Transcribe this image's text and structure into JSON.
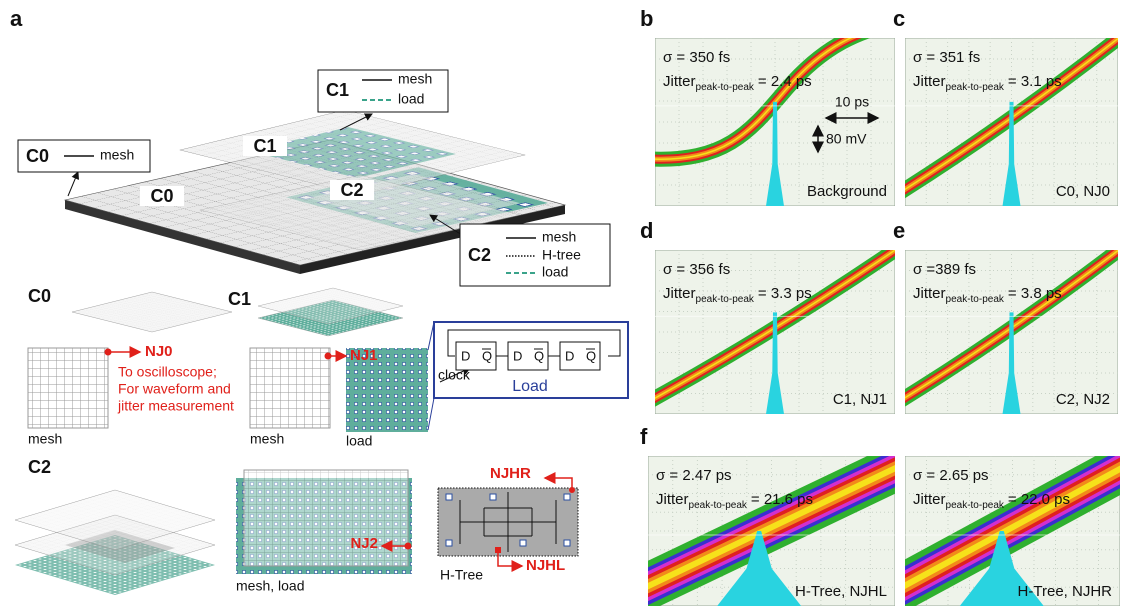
{
  "panel_a": {
    "label": "a",
    "chip": {
      "c1_legend": {
        "title": "C1",
        "items": [
          "mesh",
          "load"
        ]
      },
      "c0_legend": {
        "title": "C0",
        "items": [
          "mesh"
        ]
      },
      "c2_legend": {
        "title": "C2",
        "items": [
          "mesh",
          "H-tree",
          "load"
        ]
      },
      "chip_labels": [
        "C1",
        "C0",
        "C2"
      ]
    },
    "c0": {
      "title": "C0",
      "node": "NJ0",
      "note": [
        "To oscilloscope;",
        "For waveform and",
        "jitter measurement"
      ],
      "caption": "mesh"
    },
    "c1": {
      "title": "C1",
      "node": "NJ1",
      "captions": [
        "mesh",
        "load"
      ],
      "load_box": {
        "clock": "clock",
        "title": "Load",
        "flipflops": [
          {
            "d": "D",
            "q": "Q",
            "q_bar": "Q"
          },
          {
            "d": "D",
            "q": "Q",
            "q_bar": "Q"
          },
          {
            "d": "D",
            "q": "Q",
            "q_bar": "Q"
          }
        ]
      }
    },
    "c2": {
      "title": "C2",
      "node": "NJ2",
      "caption": "mesh, load",
      "htree": {
        "caption": "H-Tree",
        "nodes": [
          "NJHR",
          "NJHL"
        ]
      }
    }
  },
  "scale": {
    "time": "10 ps",
    "voltage": "80 mV"
  },
  "scopes": [
    {
      "label": "b",
      "sigma": "σ = 350 fs",
      "jitter": "Jitter",
      "sub": "peak-to-peak",
      "jitter_value": "= 2.4 ps",
      "caption": "Background"
    },
    {
      "label": "c",
      "sigma": "σ = 351 fs",
      "jitter": "Jitter",
      "sub": "peak-to-peak",
      "jitter_value": "= 3.1 ps",
      "caption": "C0, NJ0"
    },
    {
      "label": "d",
      "sigma": "σ = 356 fs",
      "jitter": "Jitter",
      "sub": "peak-to-peak",
      "jitter_value": "= 3.3 ps",
      "caption": "C1, NJ1"
    },
    {
      "label": "e",
      "sigma": "σ =389 fs",
      "jitter": "Jitter",
      "sub": "peak-to-peak",
      "jitter_value": "= 3.8 ps",
      "caption": "C2, NJ2"
    },
    {
      "label": "f",
      "sigma": "σ = 2.47 ps",
      "jitter": "Jitter",
      "sub": "peak-to-peak",
      "jitter_value": "= 21.6 ps",
      "caption": "H-Tree, NJHL"
    },
    {
      "sigma": "σ = 2.65 ps",
      "jitter": "Jitter",
      "sub": "peak-to-peak",
      "jitter_value": "= 22.0 ps",
      "caption": "H-Tree, NJHR"
    }
  ]
}
